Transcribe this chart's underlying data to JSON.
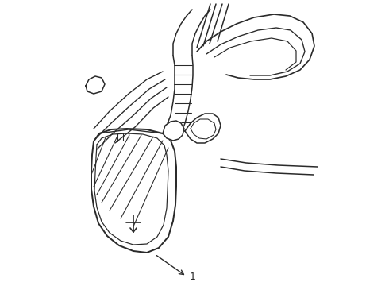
{
  "background_color": "#ffffff",
  "line_color": "#2a2a2a",
  "line_width": 1.1,
  "label": "1",
  "label_fontsize": 9,
  "figsize": [
    4.9,
    3.6
  ],
  "dpi": 100
}
